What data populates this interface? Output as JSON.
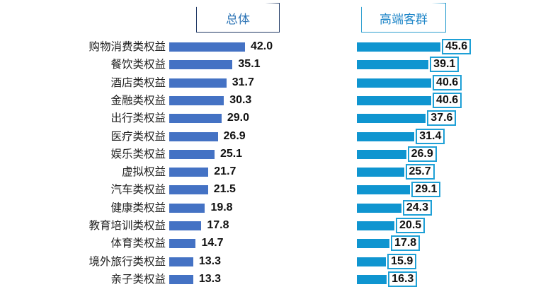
{
  "header": {
    "left_title": "总体",
    "right_title": "高端客群"
  },
  "colors": {
    "left_bar": "#4472c4",
    "right_bar": "#0f95d0",
    "value_box_border": "#1ea0d6"
  },
  "chart_data": [
    {
      "type": "bar",
      "orientation": "horizontal",
      "title": "总体",
      "categories": [
        "购物消费类权益",
        "餐饮类权益",
        "酒店类权益",
        "金融类权益",
        "出行类权益",
        "医疗类权益",
        "娱乐类权益",
        "虚拟权益",
        "汽车类权益",
        "健康类权益",
        "教育培训类权益",
        "体育类权益",
        "境外旅行类权益",
        "亲子类权益"
      ],
      "values": [
        42.0,
        35.1,
        31.7,
        30.3,
        29.0,
        26.9,
        25.1,
        21.7,
        21.5,
        19.8,
        17.8,
        14.7,
        13.3,
        13.3
      ],
      "value_labels": [
        "42.0",
        "35.1",
        "31.7",
        "30.3",
        "29.0",
        "26.9",
        "25.1",
        "21.7",
        "21.5",
        "19.8",
        "17.8",
        "14.7",
        "13.3",
        "13.3"
      ],
      "xlabel": "",
      "ylabel": "",
      "grid": false,
      "legend": false
    },
    {
      "type": "bar",
      "orientation": "horizontal",
      "title": "高端客群",
      "categories": [
        "购物消费类权益",
        "餐饮类权益",
        "酒店类权益",
        "金融类权益",
        "出行类权益",
        "医疗类权益",
        "娱乐类权益",
        "虚拟权益",
        "汽车类权益",
        "健康类权益",
        "教育培训类权益",
        "体育类权益",
        "境外旅行类权益",
        "亲子类权益"
      ],
      "values": [
        45.6,
        39.1,
        40.6,
        40.6,
        37.6,
        31.4,
        26.9,
        25.7,
        29.1,
        24.3,
        20.5,
        17.8,
        15.9,
        16.3
      ],
      "value_labels": [
        "45.6",
        "39.1",
        "40.6",
        "40.6",
        "37.6",
        "31.4",
        "26.9",
        "25.7",
        "29.1",
        "24.3",
        "20.5",
        "17.8",
        "15.9",
        "16.3"
      ],
      "xlabel": "",
      "ylabel": "",
      "grid": false,
      "legend": false
    }
  ]
}
